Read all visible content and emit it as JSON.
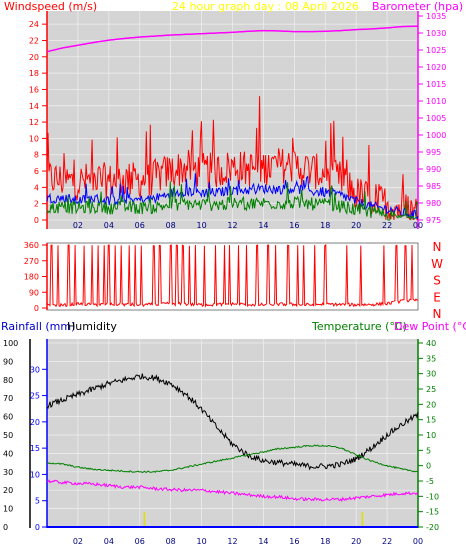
{
  "chart_data": [
    {
      "type": "line",
      "title": "24 hour graph day : 08 April 2026",
      "left_axis_label": "Windspeed (m/s)",
      "right_axis_label": "Barometer (hpa)",
      "x_ticks": [
        "02",
        "04",
        "06",
        "08",
        "10",
        "12",
        "14",
        "16",
        "18",
        "20",
        "22",
        "00"
      ],
      "left_ticks": [
        "0",
        "2",
        "4",
        "6",
        "8",
        "10",
        "12",
        "14",
        "16",
        "18",
        "20",
        "22",
        "24"
      ],
      "right_ticks": [
        "975",
        "980",
        "985",
        "990",
        "995",
        "1000",
        "1005",
        "1010",
        "1015",
        "1020",
        "1025",
        "1030",
        "1035"
      ],
      "left_ylim": [
        0,
        25
      ],
      "right_ylim": [
        975,
        1035
      ],
      "grid": true,
      "x": [
        0,
        1,
        2,
        3,
        4,
        5,
        6,
        7,
        8,
        9,
        10,
        11,
        12,
        13,
        14,
        15,
        16,
        17,
        18,
        19,
        20,
        21,
        22,
        23,
        24
      ],
      "series": [
        {
          "name": "Windspeed gust",
          "color": "#ff0000",
          "axis": "left",
          "values": [
            5.0,
            4.6,
            4.4,
            4.8,
            4.5,
            4.8,
            4.6,
            5.0,
            5.8,
            6.2,
            5.8,
            5.8,
            6.3,
            6.0,
            6.2,
            6.5,
            6.4,
            5.9,
            5.4,
            4.8,
            3.0,
            2.3,
            1.8,
            1.1,
            0.8
          ]
        },
        {
          "name": "Windspeed avg",
          "color": "#0000ff",
          "axis": "left",
          "values": [
            2.6,
            2.6,
            2.3,
            2.6,
            2.3,
            2.5,
            2.4,
            2.6,
            3.2,
            3.5,
            3.3,
            3.3,
            3.6,
            3.6,
            3.8,
            3.7,
            3.8,
            3.5,
            3.3,
            3.0,
            2.2,
            1.6,
            1.3,
            0.8,
            0.5
          ]
        },
        {
          "name": "Windspeed min",
          "color": "#008000",
          "axis": "left",
          "values": [
            1.4,
            1.5,
            1.4,
            1.5,
            1.4,
            1.5,
            1.4,
            1.5,
            1.8,
            1.9,
            1.8,
            1.8,
            1.9,
            1.9,
            2.0,
            2.0,
            2.0,
            1.9,
            1.8,
            1.6,
            1.2,
            0.9,
            0.6,
            0.4,
            0.2
          ]
        },
        {
          "name": "Barometer",
          "color": "#ff00ff",
          "axis": "right",
          "values": [
            1024.5,
            1025.6,
            1026.4,
            1027.2,
            1027.9,
            1028.4,
            1028.8,
            1029.1,
            1029.4,
            1029.6,
            1029.8,
            1030.0,
            1030.2,
            1030.5,
            1030.7,
            1030.6,
            1030.4,
            1030.4,
            1030.5,
            1030.7,
            1031.0,
            1031.2,
            1031.5,
            1031.9,
            1032.0
          ]
        }
      ]
    },
    {
      "type": "line",
      "right_labels": [
        "N",
        "W",
        "S",
        "E",
        "N"
      ],
      "left_ticks": [
        "0",
        "90",
        "180",
        "270",
        "360"
      ],
      "ylim": [
        0,
        360
      ],
      "series": [
        {
          "name": "Wind direction",
          "color": "#ff0000",
          "values": [
            20,
            15,
            25,
            18,
            22,
            20,
            18,
            20,
            25,
            22,
            18,
            20,
            24,
            20,
            18,
            22,
            20,
            18,
            22,
            20,
            18,
            20,
            25,
            40,
            45
          ]
        }
      ]
    },
    {
      "type": "line",
      "left_axis_label_1": "Rainfall (mm)",
      "left_axis_label_2": "Humidity",
      "right_axis_label_1": "Temperature (°C)",
      "right_axis_label_2": "Dew Point (°C)",
      "x_ticks": [
        "02",
        "04",
        "06",
        "08",
        "10",
        "12",
        "14",
        "16",
        "18",
        "20",
        "22",
        "00"
      ],
      "humidity_ticks": [
        "0",
        "10",
        "20",
        "30",
        "40",
        "50",
        "60",
        "70",
        "80",
        "90",
        "100"
      ],
      "rain_ticks": [
        "0",
        "5",
        "10",
        "15",
        "20",
        "25",
        "30"
      ],
      "temp_ticks": [
        "-20",
        "-15",
        "-10",
        "-5",
        "0",
        "5",
        "10",
        "15",
        "20",
        "25",
        "30",
        "35",
        "40"
      ],
      "humidity_ylim": [
        0,
        100
      ],
      "rain_ylim": [
        0,
        30
      ],
      "temp_ylim": [
        -20,
        40
      ],
      "grid": true,
      "series": [
        {
          "name": "Humidity",
          "color": "#000000",
          "axis": "humidity",
          "values": [
            66,
            69,
            72,
            75,
            78,
            80,
            82,
            81,
            78,
            72,
            64,
            54,
            45,
            39,
            36,
            35,
            34,
            33,
            33,
            34,
            37,
            43,
            50,
            56,
            61
          ]
        },
        {
          "name": "Temperature",
          "color": "#008000",
          "axis": "temp",
          "values": [
            1.0,
            0.5,
            -0.5,
            -1.2,
            -1.5,
            -1.8,
            -2.0,
            -2.0,
            -1.5,
            -0.5,
            0.5,
            1.5,
            2.5,
            3.5,
            4.5,
            5.5,
            6.0,
            6.5,
            6.5,
            5.8,
            3.5,
            1.5,
            0.0,
            -1.2,
            -2.0
          ]
        },
        {
          "name": "Dew Point",
          "color": "#ff00ff",
          "axis": "temp",
          "values": [
            -5.0,
            -5.5,
            -5.8,
            -6.0,
            -6.5,
            -7.0,
            -7.0,
            -7.5,
            -7.8,
            -8.0,
            -8.0,
            -8.5,
            -9.0,
            -9.5,
            -10.0,
            -10.2,
            -10.8,
            -11.0,
            -11.0,
            -11.0,
            -10.5,
            -10.0,
            -9.5,
            -9.0,
            -9.0
          ]
        },
        {
          "name": "Rainfall",
          "color": "#0000ff",
          "axis": "rain",
          "values": [
            0,
            0,
            0,
            0,
            0,
            0,
            0,
            0,
            0,
            0,
            0,
            0,
            0,
            0,
            0,
            0,
            0,
            0,
            0,
            0,
            0,
            0,
            0,
            0,
            0
          ]
        }
      ]
    }
  ]
}
